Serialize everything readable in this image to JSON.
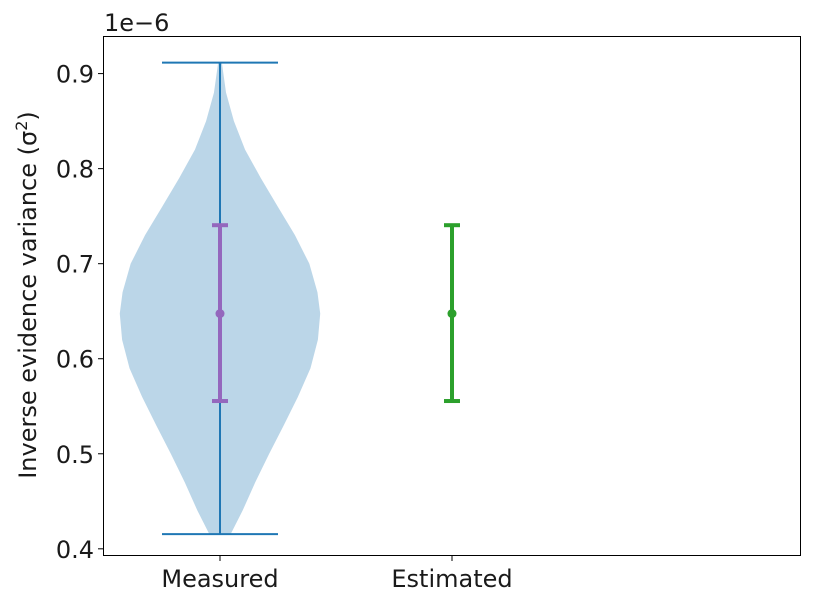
{
  "chart_data": {
    "type": "violin",
    "ylabel": "Inverse evidence variance (σ",
    "ylabel_sup": "2",
    "ylabel_close": ")",
    "scale_label": "1e−6",
    "ylim": [
      0.3935,
      0.9385
    ],
    "yticks": [
      0.4,
      0.5,
      0.6,
      0.7,
      0.8,
      0.9
    ],
    "ytick_labels": [
      "0.4",
      "0.5",
      "0.6",
      "0.7",
      "0.8",
      "0.9"
    ],
    "categories": [
      "Measured",
      "Estimated"
    ],
    "grid": false,
    "measured": {
      "min": 0.4155,
      "max": 0.9115,
      "mean": 0.6475,
      "err_low": 0.5555,
      "err_high": 0.7405,
      "violin_profile": [
        {
          "y": 0.4155,
          "half_width": 0.046
        },
        {
          "y": 0.44,
          "half_width": 0.097
        },
        {
          "y": 0.47,
          "half_width": 0.152
        },
        {
          "y": 0.5,
          "half_width": 0.212
        },
        {
          "y": 0.53,
          "half_width": 0.275
        },
        {
          "y": 0.56,
          "half_width": 0.336
        },
        {
          "y": 0.59,
          "half_width": 0.39
        },
        {
          "y": 0.62,
          "half_width": 0.422
        },
        {
          "y": 0.6475,
          "half_width": 0.432
        },
        {
          "y": 0.67,
          "half_width": 0.42
        },
        {
          "y": 0.7,
          "half_width": 0.385
        },
        {
          "y": 0.73,
          "half_width": 0.323
        },
        {
          "y": 0.76,
          "half_width": 0.249
        },
        {
          "y": 0.79,
          "half_width": 0.176
        },
        {
          "y": 0.82,
          "half_width": 0.108
        },
        {
          "y": 0.85,
          "half_width": 0.06
        },
        {
          "y": 0.88,
          "half_width": 0.026
        },
        {
          "y": 0.9115,
          "half_width": 0.008
        }
      ]
    },
    "estimated": {
      "mean": 0.6475,
      "err_low": 0.5555,
      "err_high": 0.7405
    },
    "colors": {
      "violin_fill": "#1f77b4",
      "violin_alpha": 0.3,
      "violin_lines": "#1f77b4",
      "measured_err": "#9467bd",
      "estimated_err": "#2ca02c",
      "axes": "#000000"
    }
  }
}
